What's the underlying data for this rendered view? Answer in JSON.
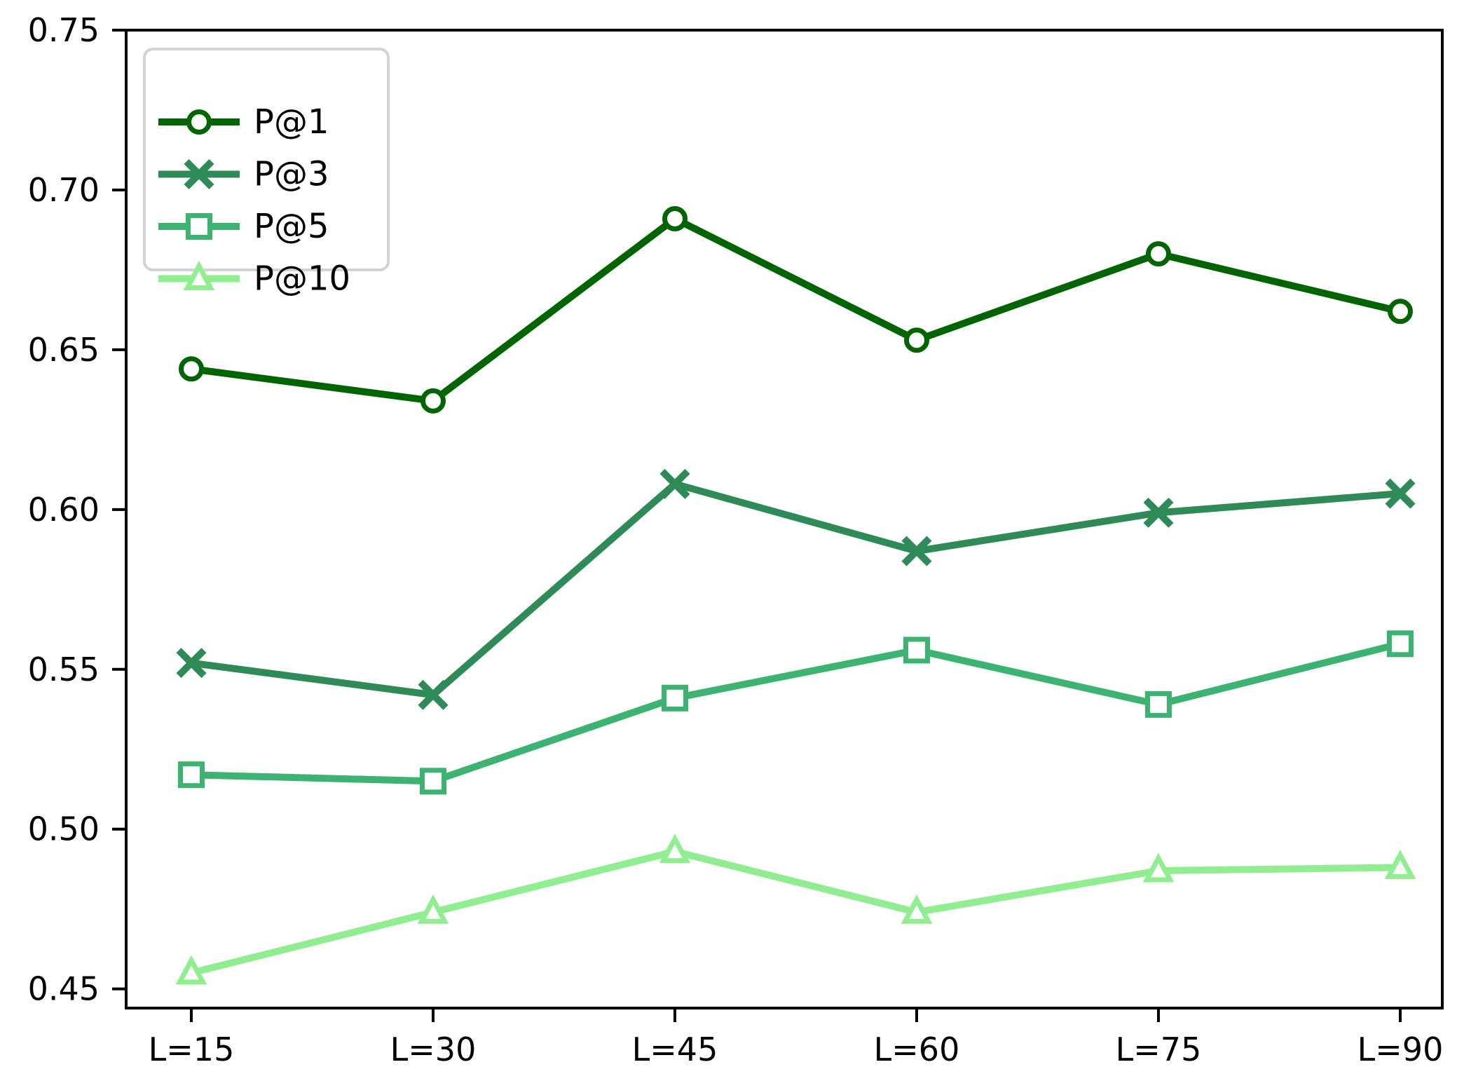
{
  "chart_data": {
    "type": "line",
    "title": "",
    "xlabel": "",
    "ylabel": "",
    "grid": false,
    "legend_position": "upper-left",
    "categories": [
      "L=15",
      "L=30",
      "L=45",
      "L=60",
      "L=75",
      "L=90"
    ],
    "x_values": [
      15,
      30,
      45,
      60,
      75,
      90
    ],
    "series": [
      {
        "name": "P@1",
        "marker": "circle",
        "color": "#006400",
        "values": [
          0.644,
          0.634,
          0.691,
          0.653,
          0.68,
          0.662
        ]
      },
      {
        "name": "P@3",
        "marker": "x",
        "color": "#2e8b57",
        "values": [
          0.552,
          0.542,
          0.608,
          0.587,
          0.599,
          0.605
        ]
      },
      {
        "name": "P@5",
        "marker": "square",
        "color": "#3cb371",
        "values": [
          0.517,
          0.515,
          0.541,
          0.556,
          0.539,
          0.558
        ]
      },
      {
        "name": "P@10",
        "marker": "triangle",
        "color": "#90ee90",
        "values": [
          0.455,
          0.474,
          0.493,
          0.474,
          0.487,
          0.488
        ]
      }
    ],
    "yticks": [
      "0.45",
      "0.50",
      "0.55",
      "0.60",
      "0.65",
      "0.70",
      "0.75"
    ],
    "ylim": [
      0.444,
      0.75
    ],
    "axis_color": "#000000",
    "legend": {
      "border_color": "#d3d3d3",
      "background": "#ffffff"
    }
  }
}
